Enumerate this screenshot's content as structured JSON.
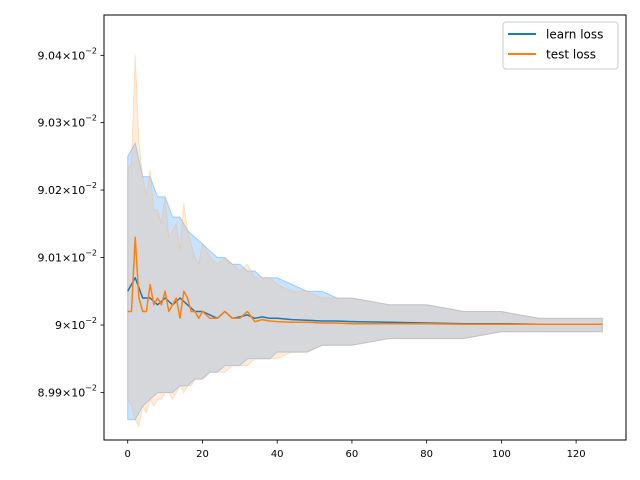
{
  "chart_data": {
    "type": "line",
    "title": "",
    "xlabel": "",
    "ylabel": "",
    "yscale": "log",
    "xlim": [
      -6.35,
      133.35
    ],
    "ylim": [
      0.08983,
      0.09046
    ],
    "x_ticks": [
      0,
      20,
      40,
      60,
      80,
      100,
      120
    ],
    "x_tick_labels": [
      "0",
      "20",
      "40",
      "60",
      "80",
      "100",
      "120"
    ],
    "y_ticks": [
      0.0899,
      0.09,
      0.0901,
      0.0902,
      0.0903,
      0.0904
    ],
    "y_tick_labels": [
      {
        "mantissa": "8.99",
        "exp": "−2"
      },
      {
        "mantissa": "9",
        "exp": "−2"
      },
      {
        "mantissa": "9.01",
        "exp": "−2"
      },
      {
        "mantissa": "9.02",
        "exp": "−2"
      },
      {
        "mantissa": "9.03",
        "exp": "−2"
      },
      {
        "mantissa": "9.04",
        "exp": "−2"
      }
    ],
    "legend_position": "top-right",
    "series": [
      {
        "name": "learn loss",
        "color": "#1f77b4",
        "band_color": "#1f8fff",
        "x": [
          0,
          2,
          4,
          6,
          8,
          10,
          12,
          14,
          16,
          18,
          20,
          22,
          24,
          26,
          28,
          30,
          32,
          34,
          36,
          38,
          40,
          44,
          48,
          52,
          56,
          60,
          70,
          80,
          90,
          100,
          110,
          120,
          127
        ],
        "mean": [
          0.09005,
          0.09007,
          0.09004,
          0.09004,
          0.09003,
          0.09004,
          0.09003,
          0.09004,
          0.09003,
          0.09002,
          0.09002,
          0.090015,
          0.09001,
          0.09002,
          0.09001,
          0.090012,
          0.090015,
          0.09001,
          0.090012,
          0.09001,
          0.09001,
          0.090008,
          0.090007,
          0.090006,
          0.090006,
          0.090005,
          0.090004,
          0.090003,
          0.090002,
          0.090002,
          0.090001,
          0.090001,
          0.090001
        ],
        "upper": [
          0.09025,
          0.09027,
          0.09022,
          0.09022,
          0.09019,
          0.09019,
          0.09016,
          0.09016,
          0.09014,
          0.09013,
          0.09012,
          0.09011,
          0.0901,
          0.0901,
          0.09009,
          0.09009,
          0.09008,
          0.09008,
          0.09007,
          0.09007,
          0.09007,
          0.09006,
          0.09005,
          0.09005,
          0.09004,
          0.09004,
          0.09003,
          0.09003,
          0.09002,
          0.09002,
          0.09001,
          0.09001,
          0.09001
        ],
        "lower": [
          0.08986,
          0.08986,
          0.08988,
          0.08989,
          0.0899,
          0.0899,
          0.0899,
          0.08991,
          0.08991,
          0.08992,
          0.08992,
          0.08993,
          0.08993,
          0.08994,
          0.08994,
          0.08994,
          0.08995,
          0.08995,
          0.08995,
          0.08995,
          0.08996,
          0.08996,
          0.08996,
          0.08997,
          0.08997,
          0.08997,
          0.08998,
          0.08998,
          0.08998,
          0.08999,
          0.08999,
          0.08999,
          0.08999
        ]
      },
      {
        "name": "test loss",
        "color": "#ff7f0e",
        "band_color": "#ffb36b",
        "x": [
          0,
          1,
          2,
          3,
          4,
          5,
          6,
          7,
          8,
          9,
          10,
          11,
          12,
          13,
          14,
          15,
          16,
          17,
          18,
          19,
          20,
          22,
          24,
          26,
          28,
          30,
          32,
          34,
          36,
          38,
          40,
          44,
          48,
          52,
          56,
          60,
          70,
          80,
          90,
          100,
          110,
          120,
          127
        ],
        "mean": [
          0.09002,
          0.09002,
          0.09013,
          0.09004,
          0.09002,
          0.09002,
          0.09006,
          0.09003,
          0.09004,
          0.09003,
          0.09005,
          0.09002,
          0.09003,
          0.09004,
          0.09001,
          0.09005,
          0.09004,
          0.09002,
          0.09002,
          0.09001,
          0.09002,
          0.09001,
          0.09001,
          0.09002,
          0.09001,
          0.09001,
          0.09002,
          0.090005,
          0.090008,
          0.090006,
          0.090005,
          0.090004,
          0.090004,
          0.090003,
          0.090003,
          0.090002,
          0.090002,
          0.090002,
          0.090001,
          0.090001,
          0.090001,
          0.090001,
          0.090001
        ],
        "upper": [
          0.09023,
          0.09024,
          0.0904,
          0.09027,
          0.09022,
          0.09019,
          0.09023,
          0.09017,
          0.09017,
          0.09015,
          0.09019,
          0.09013,
          0.09014,
          0.09015,
          0.09011,
          0.09018,
          0.09014,
          0.09012,
          0.0901,
          0.09009,
          0.09012,
          0.0901,
          0.09009,
          0.0901,
          0.09009,
          0.09008,
          0.09009,
          0.09007,
          0.09007,
          0.09007,
          0.09006,
          0.09005,
          0.09005,
          0.09004,
          0.09004,
          0.09004,
          0.09003,
          0.09003,
          0.09002,
          0.09002,
          0.09001,
          0.09001,
          0.09001
        ],
        "lower": [
          0.08989,
          0.08988,
          0.08986,
          0.08985,
          0.08988,
          0.08987,
          0.08989,
          0.08988,
          0.08989,
          0.08989,
          0.0899,
          0.0899,
          0.08989,
          0.0899,
          0.08991,
          0.0899,
          0.08991,
          0.08991,
          0.08992,
          0.08992,
          0.08992,
          0.08993,
          0.08993,
          0.08993,
          0.08994,
          0.08994,
          0.08994,
          0.08995,
          0.08995,
          0.08995,
          0.08995,
          0.08996,
          0.08996,
          0.08997,
          0.08997,
          0.08997,
          0.08998,
          0.08998,
          0.08998,
          0.08999,
          0.08999,
          0.08999,
          0.08999
        ]
      }
    ]
  }
}
